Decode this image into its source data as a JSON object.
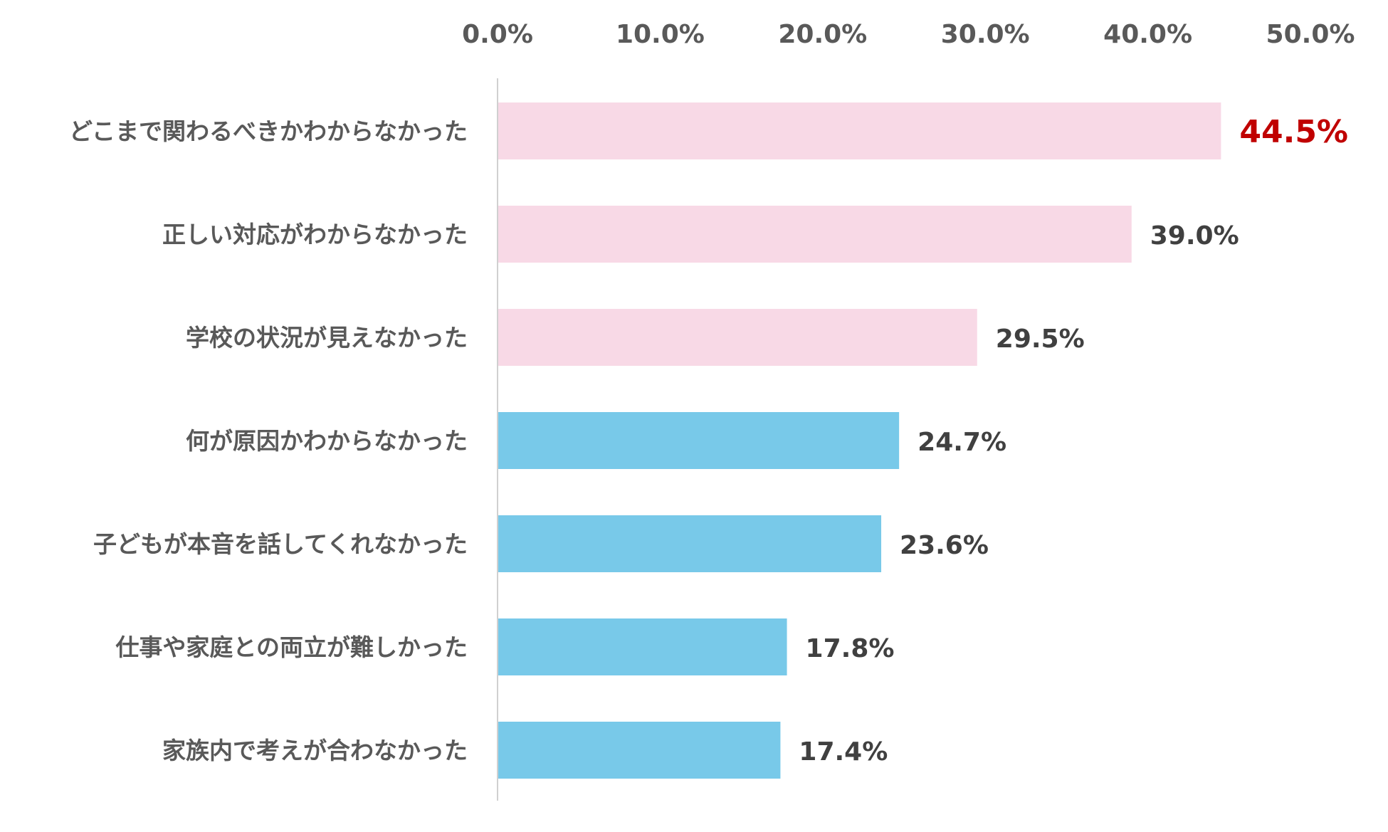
{
  "chart_data": {
    "type": "bar",
    "orientation": "horizontal",
    "categories": [
      "どこまで関わるべきかわからなかった",
      "正しい対応がわからなかった",
      "学校の状況が見えなかった",
      "何が原因かわからなかった",
      "子どもが本音を話してくれなかった",
      "仕事や家庭との両立が難しかった",
      "家族内で考えが合わなかった"
    ],
    "values": [
      44.5,
      39.0,
      29.5,
      24.7,
      23.6,
      17.8,
      17.4
    ],
    "value_labels": [
      "44.5%",
      "39.0%",
      "29.5%",
      "24.7%",
      "23.6%",
      "17.8%",
      "17.4%"
    ],
    "highlighted_value_index": 0,
    "x_ticks": [
      "0.0%",
      "10.0%",
      "20.0%",
      "30.0%",
      "40.0%",
      "50.0%"
    ],
    "xlim": [
      0,
      50
    ],
    "x_axis_position": "top",
    "grid": false,
    "title": "",
    "xlabel": "",
    "ylabel": "",
    "colors": {
      "pink_bar": "#f8d9e6",
      "blue_bar": "#78c9e9",
      "highlight_text": "#c00000",
      "label_text": "#404040",
      "tick_text": "#595959",
      "axis_line": "#d0d0d0"
    },
    "bar_colors": [
      "pink_bar",
      "pink_bar",
      "pink_bar",
      "blue_bar",
      "blue_bar",
      "blue_bar",
      "blue_bar"
    ]
  }
}
